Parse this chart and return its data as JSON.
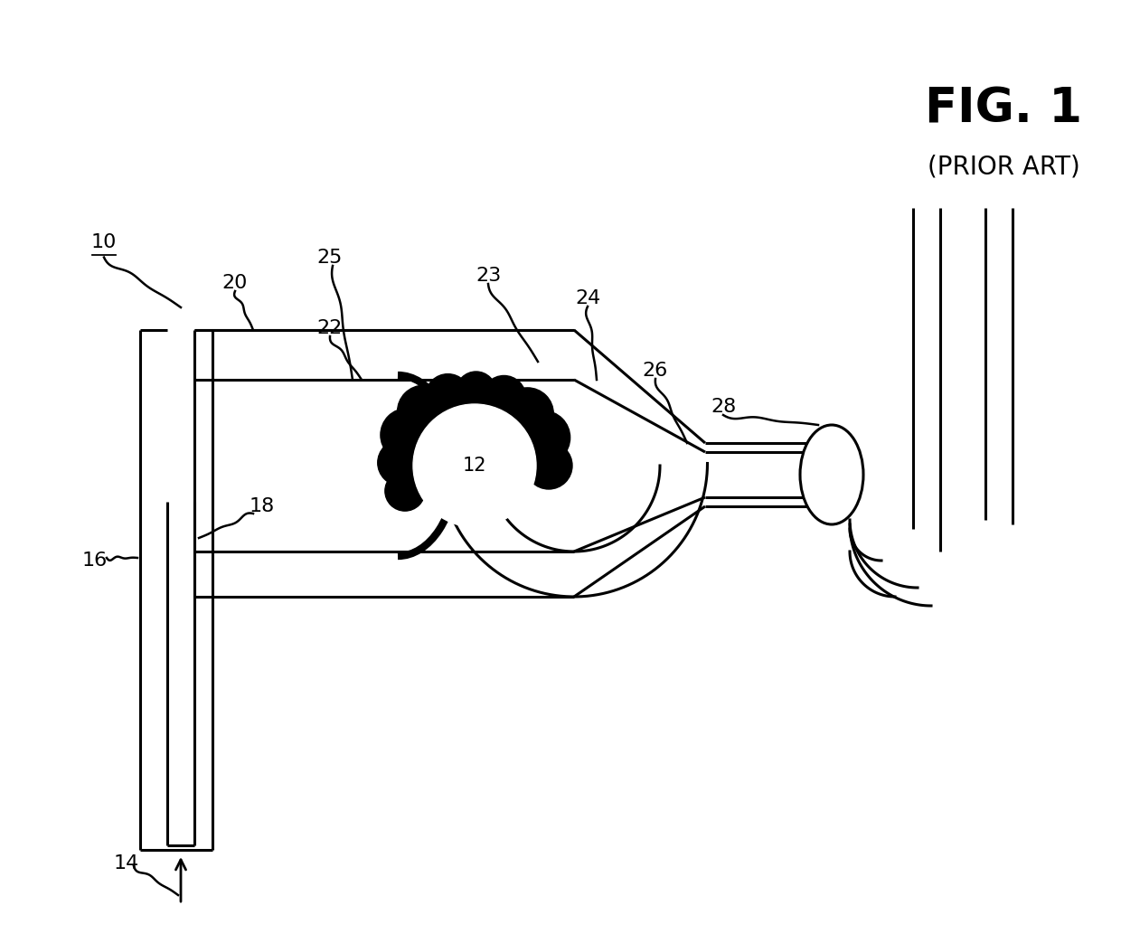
{
  "background": "#ffffff",
  "line_color": "#000000",
  "lw": 2.2,
  "fig_label": "FIG. 1",
  "fig_sublabel": "(PRIOR ART)",
  "label_fs": 16,
  "fig_label_fs": 38,
  "fig_sublabel_fs": 20
}
